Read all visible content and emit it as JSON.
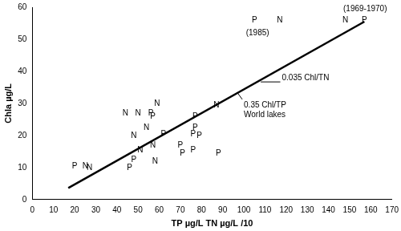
{
  "chart_data": {
    "type": "scatter",
    "x_label": "TP µg/L TN µg/L /10",
    "y_label": "Chla µg/L",
    "xlim": [
      0,
      170
    ],
    "xticks": [
      0,
      10,
      20,
      30,
      40,
      50,
      60,
      70,
      80,
      90,
      100,
      110,
      120,
      130,
      140,
      150,
      160,
      170
    ],
    "ylim": [
      0,
      60
    ],
    "yticks": [
      0,
      10,
      20,
      30,
      40,
      50,
      60
    ],
    "grid": false,
    "series": [
      {
        "name": "P",
        "marker": "text",
        "color": "#000000",
        "x": [
          20,
          46,
          48,
          56,
          57,
          62,
          70,
          71,
          76,
          76,
          77,
          77,
          79,
          88,
          105,
          157
        ],
        "values": [
          10.5,
          10,
          12.5,
          27,
          26,
          20.5,
          17,
          14.5,
          15.5,
          20.5,
          22.5,
          26,
          20,
          14.5,
          56,
          56
        ]
      },
      {
        "name": "N",
        "marker": "text",
        "color": "#000000",
        "x": [
          25,
          27,
          44,
          48,
          50,
          51,
          54,
          57,
          58,
          59,
          87,
          117,
          148
        ],
        "values": [
          10.5,
          10,
          27,
          20,
          27,
          15.5,
          22.5,
          17,
          12,
          30,
          29.5,
          56,
          56
        ]
      },
      {
        "type": "line",
        "line_style": "solid",
        "color": "#000000",
        "x": [
          17,
          157
        ],
        "values": [
          3.6,
          55.5
        ]
      }
    ],
    "annotations": [
      {
        "text": "(1985)",
        "x": 101,
        "y": 52
      },
      {
        "text": "(1969-1970)",
        "x": 147,
        "y": 59.5
      },
      {
        "text": "0.035 Chl/TN",
        "x": 118,
        "y": 38,
        "arrow_to": [
          108,
          36.7
        ]
      },
      {
        "text": "0.35 Chl/TP\nWorld lakes",
        "x": 100,
        "y": 29.5,
        "arrow_to": [
          97,
          33.3
        ]
      }
    ]
  }
}
